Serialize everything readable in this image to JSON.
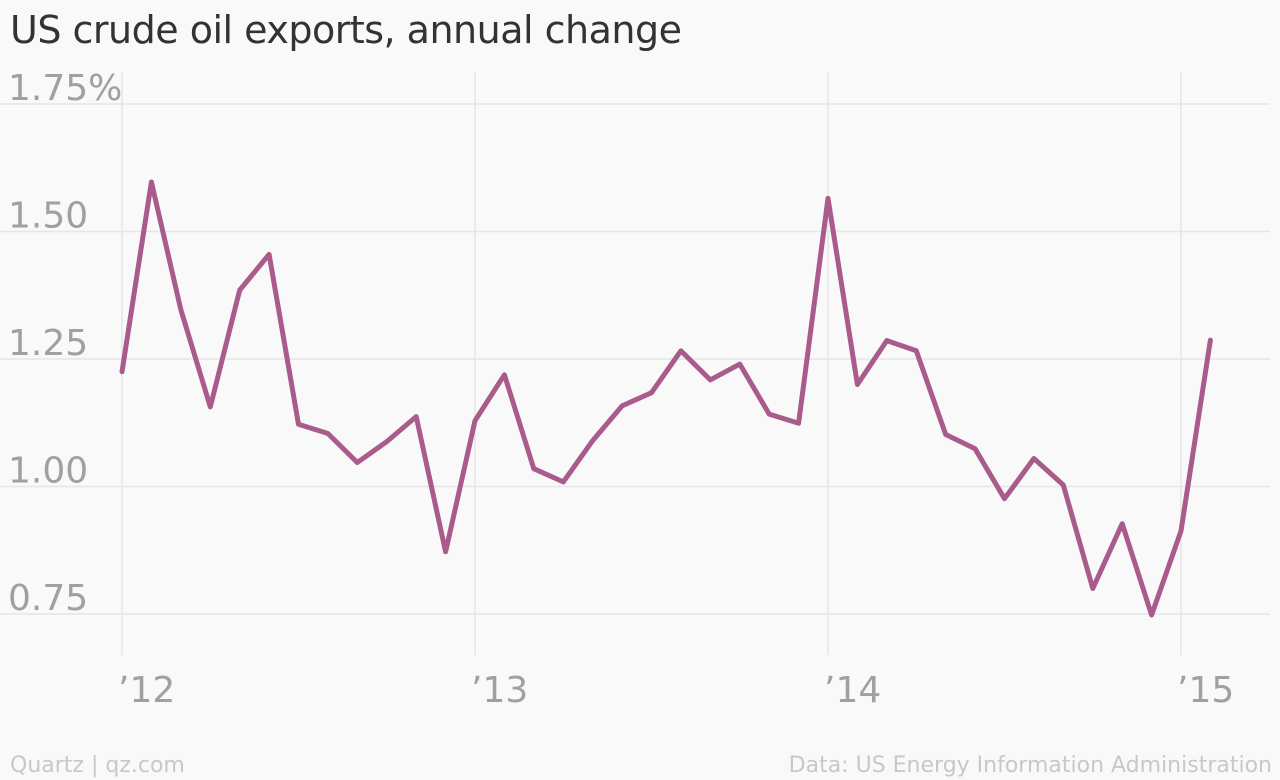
{
  "title": "US crude oil exports, annual change",
  "footer": {
    "source_left": "Quartz | qz.com",
    "source_right": "Data: US Energy Information Administration"
  },
  "colors": {
    "line": "#a95b8c",
    "grid": "#e6e6e6",
    "tick_text": "#a0a0a0",
    "background": "#f9f9f9"
  },
  "chart_data": {
    "type": "line",
    "title": "US crude oil exports, annual change",
    "xlabel": "",
    "ylabel": "",
    "ylim": [
      0.65,
      1.8
    ],
    "y_ticks": [
      0.75,
      1.0,
      1.25,
      1.5,
      1.75
    ],
    "y_tick_labels": [
      "0.75",
      "1.00",
      "1.25",
      "1.50",
      "1.75%"
    ],
    "x_ticks": [
      "2012-01",
      "2013-01",
      "2014-01",
      "2015-01"
    ],
    "x_tick_labels": [
      "’12",
      "’13",
      "’14",
      "’15"
    ],
    "grid": true,
    "series": [
      {
        "x": [
          "2012-01",
          "2012-02",
          "2012-03",
          "2012-04",
          "2012-05",
          "2012-06",
          "2012-07",
          "2012-08",
          "2012-09",
          "2012-10",
          "2012-11",
          "2012-12",
          "2013-01",
          "2013-02",
          "2013-03",
          "2013-04",
          "2013-05",
          "2013-06",
          "2013-07",
          "2013-08",
          "2013-09",
          "2013-10",
          "2013-11",
          "2013-12",
          "2014-01",
          "2014-02",
          "2014-03",
          "2014-04",
          "2014-05",
          "2014-06",
          "2014-07",
          "2014-08",
          "2014-09",
          "2014-10",
          "2014-11",
          "2014-12",
          "2015-01",
          "2015-02"
        ],
        "values": [
          1.225,
          1.597,
          1.347,
          1.156,
          1.385,
          1.455,
          1.122,
          1.104,
          1.047,
          1.088,
          1.137,
          0.872,
          1.129,
          1.219,
          1.035,
          1.009,
          1.09,
          1.158,
          1.184,
          1.266,
          1.209,
          1.24,
          1.142,
          1.124,
          1.565,
          1.2,
          1.286,
          1.266,
          1.102,
          1.074,
          0.976,
          1.055,
          1.003,
          0.8,
          0.927,
          0.748,
          0.913,
          1.287
        ]
      }
    ]
  }
}
